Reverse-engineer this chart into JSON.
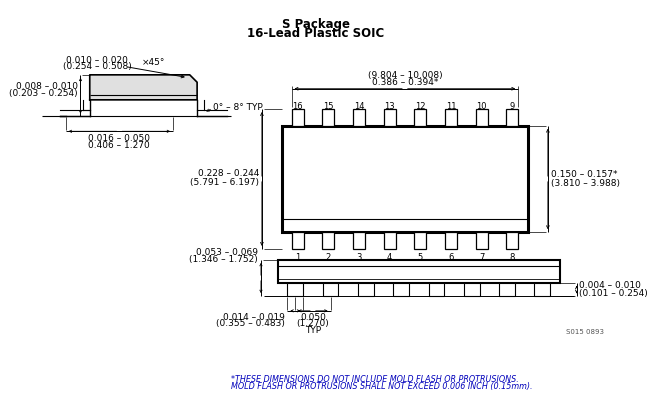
{
  "title_line1": "S Package",
  "title_line2": "16-Lead Plastic SOIC",
  "line_color": "#000000",
  "text_color": "#000000",
  "blue_text_color": "#0000BB",
  "background": "#FFFFFF",
  "note_line1": "*THESE DIMENSIONS DO NOT INCLUDE MOLD FLASH OR PROTRUSIONS.",
  "note_line2": "MOLD FLASH OR PROTRUSIONS SHALL NOT EXCEED 0.006 INCH (0.15mm).",
  "watermark": "S015 0893"
}
